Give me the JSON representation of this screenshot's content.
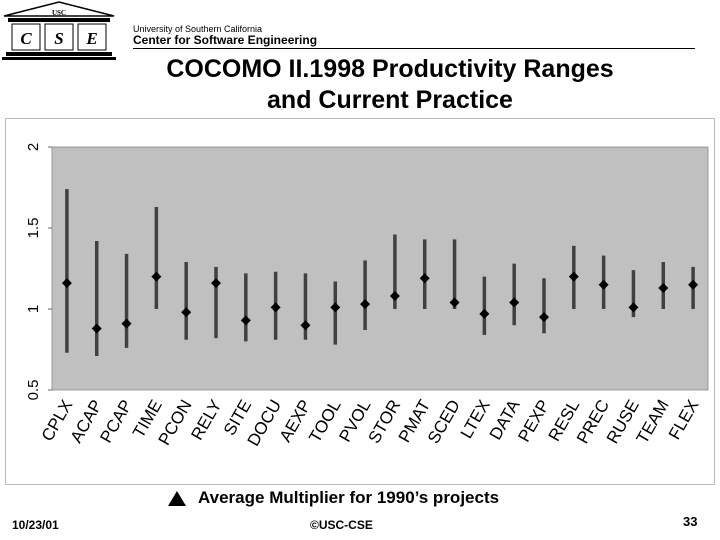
{
  "header": {
    "logo_text": "CSE",
    "logo_letters": [
      "C",
      "S",
      "E"
    ],
    "university": "University of Southern California",
    "center": "Center for Software Engineering"
  },
  "slide": {
    "title_line1": "COCOMO II.1998 Productivity Ranges",
    "title_line2": "and Current Practice"
  },
  "legend": {
    "label": "Average Multiplier for 1990’s projects"
  },
  "footer": {
    "date": "10/23/01",
    "copyright": "©USC-CSE",
    "page": "33"
  },
  "colors": {
    "plot_bg": "#c0c0c0",
    "bar": "#404040",
    "marker": "#000000"
  },
  "chart_data": {
    "type": "range",
    "title": "",
    "xlabel": "",
    "ylabel": "",
    "ylim": [
      0.5,
      2
    ],
    "yticks": [
      "0.5",
      "1",
      "1.5",
      "2"
    ],
    "grid": false,
    "categories": [
      "CPLX",
      "ACAP",
      "PCAP",
      "TIME",
      "PCON",
      "RELY",
      "SITE",
      "DOCU",
      "AEXP",
      "TOOL",
      "PVOL",
      "STOR",
      "PMAT",
      "SCED",
      "LTEX",
      "DATA",
      "PEXP",
      "RESL",
      "PREC",
      "RUSE",
      "TEAM",
      "FLEX"
    ],
    "low": [
      0.73,
      0.71,
      0.76,
      1.0,
      0.81,
      0.82,
      0.8,
      0.81,
      0.81,
      0.78,
      0.87,
      1.0,
      1.0,
      1.0,
      0.84,
      0.9,
      0.85,
      1.0,
      1.0,
      0.95,
      1.0,
      1.0
    ],
    "high": [
      1.74,
      1.42,
      1.34,
      1.63,
      1.29,
      1.26,
      1.22,
      1.23,
      1.22,
      1.17,
      1.3,
      1.46,
      1.43,
      1.43,
      1.2,
      1.28,
      1.19,
      1.39,
      1.33,
      1.24,
      1.29,
      1.26
    ],
    "average": [
      1.16,
      0.88,
      0.91,
      1.2,
      0.98,
      1.16,
      0.93,
      1.01,
      0.9,
      1.01,
      1.03,
      1.08,
      1.19,
      1.04,
      0.97,
      1.04,
      0.95,
      1.2,
      1.15,
      1.01,
      1.13,
      1.15
    ],
    "legend_label": "Average Multiplier for 1990’s projects"
  }
}
